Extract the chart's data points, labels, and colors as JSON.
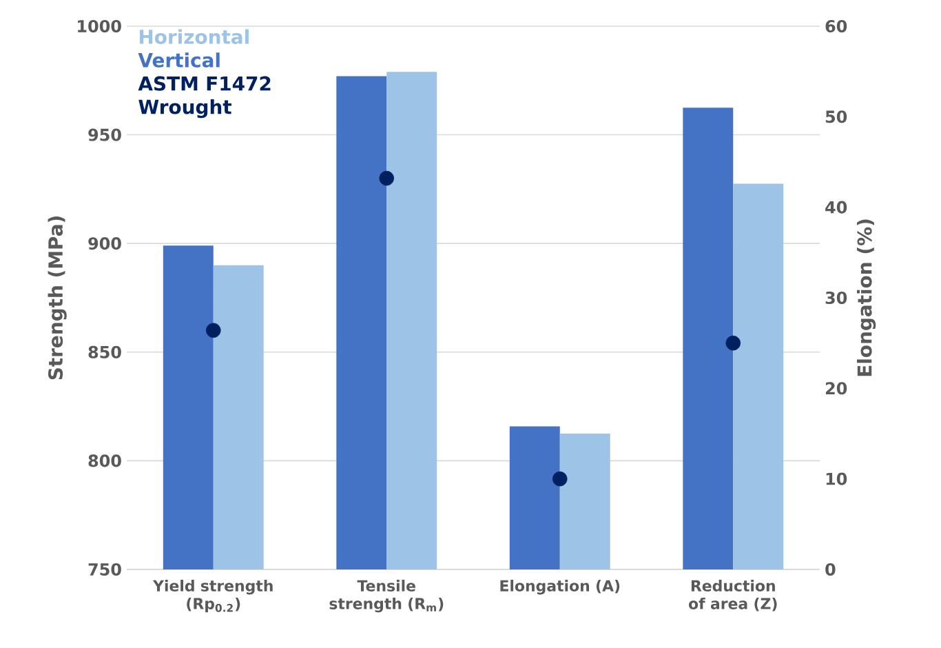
{
  "chart_data": {
    "type": "bar",
    "categories": [
      "Yield strength (Rp$_{0.2}$)",
      "Tensile strength (R$_{m}$)",
      "Elongation (A)",
      "Reduction of area (Z)"
    ],
    "ylabel": "Strength (MPa)",
    "y2label": "Elongation (%)",
    "ylim": [
      750,
      1000
    ],
    "yticks": [
      750,
      800,
      850,
      900,
      950,
      1000
    ],
    "y2lim": [
      0,
      60
    ],
    "y2ticks": [
      0,
      10,
      20,
      30,
      40,
      50,
      60
    ],
    "grid": "y",
    "legend": "top left",
    "marker": "circle",
    "series": [
      {
        "name": "ASTM F1472 Wrought",
        "type": "scatter",
        "color": "#002060",
        "values": [
          860,
          930,
          null,
          null
        ]
      },
      {
        "type": "scatter",
        "color": "#002060",
        "axis": "y2",
        "values": [
          null,
          null,
          10,
          25
        ]
      },
      {
        "name": "Vertical",
        "color": "#4472c4",
        "values": [
          899,
          977,
          null,
          null
        ]
      },
      {
        "name": "Horizontal",
        "color": "#9dc3e6",
        "values": [
          890,
          979,
          null,
          null
        ]
      },
      {
        "color": "#4472c4",
        "axis": "y2",
        "values": [
          null,
          null,
          15.8,
          51
        ]
      },
      {
        "color": "#9dc3e6",
        "axis": "y2",
        "values": [
          null,
          null,
          15,
          42.6
        ]
      }
    ]
  }
}
